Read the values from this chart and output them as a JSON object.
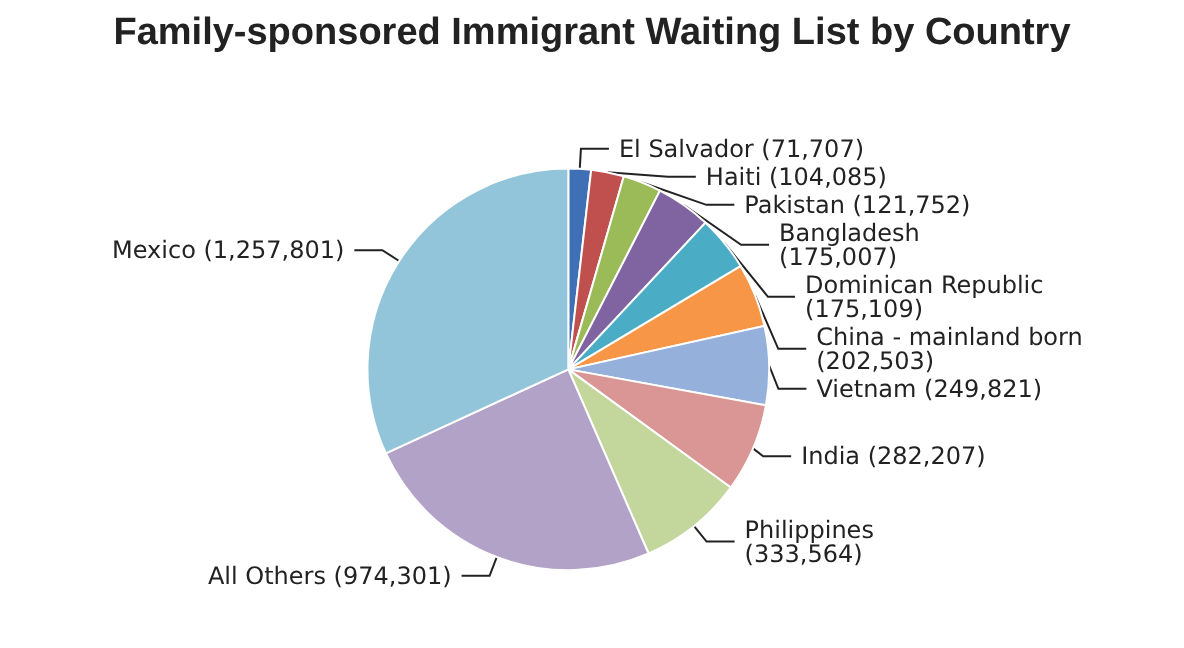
{
  "chart_data": {
    "type": "pie",
    "title": "Family-sponsored Immigrant Waiting List by Country",
    "categories": [
      "El Salvador",
      "Haiti",
      "Pakistan",
      "Bangladesh",
      "Dominican Republic",
      "China - mainland born",
      "Vietnam",
      "India",
      "Philippines",
      "All Others",
      "Mexico"
    ],
    "values": [
      71707,
      104085,
      121752,
      175007,
      175109,
      202503,
      249821,
      282207,
      333564,
      974301,
      1257801
    ],
    "colors": [
      "#3f6fb4",
      "#c0504d",
      "#9bbb59",
      "#8064a2",
      "#4bacc6",
      "#f79646",
      "#95b0da",
      "#d99694",
      "#c3d69b",
      "#b3a2c7",
      "#93c5da"
    ],
    "value_labels": [
      "(71,707)",
      "(104,085)",
      "(121,752)",
      "(175,007)",
      "(175,109)",
      "(202,503)",
      "(249,821)",
      "(282,207)",
      "(333,564)",
      "(974,301)",
      "(1,257,801)"
    ],
    "legend": false
  }
}
